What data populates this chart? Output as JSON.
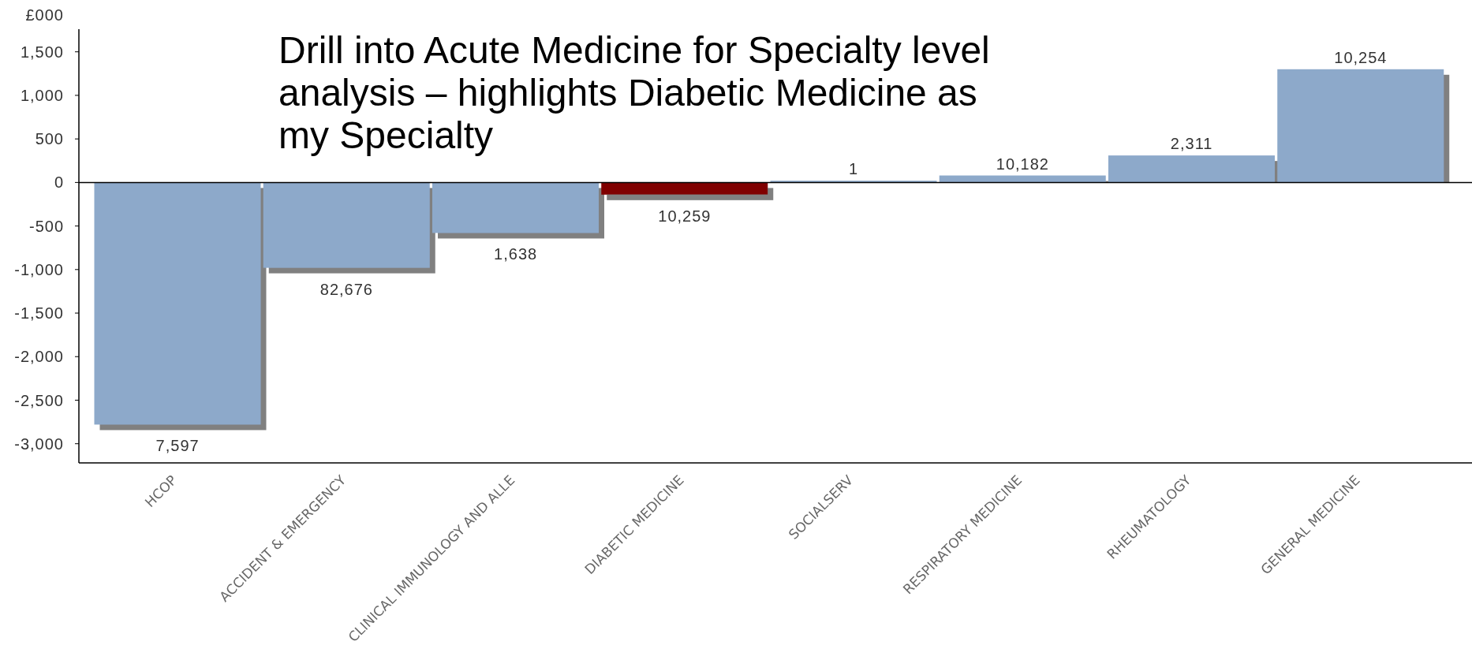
{
  "chart_data": {
    "type": "bar",
    "ylabel": "£000",
    "annotations": [
      "Drill into Acute Medicine for Specialty level analysis – highlights Diabetic Medicine as my Specialty",
      {
        "text": "7,597",
        "x": "HCOP",
        "y": -2780
      },
      {
        "text": "82,676",
        "x": "ACCIDENT & EMERGENCY",
        "y": -980
      },
      {
        "text": "1,638",
        "x": "CLINICAL IMMUNOLOGY AND ALLE",
        "y": -580
      },
      {
        "text": "10,259",
        "x": "DIABETIC MEDICINE",
        "y": -140
      },
      {
        "text": "1",
        "x": "SOCIALSERV",
        "y": 20
      },
      {
        "text": "10,182",
        "x": "RESPIRATORY MEDICINE",
        "y": 80
      },
      {
        "text": "2,311",
        "x": "RHEUMATOLOGY",
        "y": 310
      },
      {
        "text": "10,254",
        "x": "GENERAL MEDICINE",
        "y": 1300
      }
    ],
    "categories": [
      "HCOP",
      "ACCIDENT & EMERGENCY",
      "CLINICAL IMMUNOLOGY AND ALLE",
      "DIABETIC MEDICINE",
      "SOCIALSERV",
      "RESPIRATORY MEDICINE",
      "RHEUMATOLOGY",
      "GENERAL MEDICINE"
    ],
    "values": [
      -2780,
      -980,
      -580,
      -140,
      20,
      80,
      310,
      1300
    ],
    "colors": [
      "#8da9ca",
      "#8da9ca",
      "#8da9ca",
      "#800000",
      "#8da9ca",
      "#8da9ca",
      "#8da9ca",
      "#8da9ca"
    ],
    "ylim": [
      -3220,
      1760
    ],
    "yticks": [
      {
        "value": -3000,
        "label": "-3,000"
      },
      {
        "value": -2500,
        "label": "-2,500"
      },
      {
        "value": -2000,
        "label": "-2,000"
      },
      {
        "value": -1500,
        "label": "-1,500"
      },
      {
        "value": -1000,
        "label": "-1,000"
      },
      -500,
      0,
      500,
      {
        "value": 1000,
        "label": "1,000"
      },
      {
        "value": 1500,
        "label": "1,500"
      }
    ],
    "ref_lines": [
      {
        "axis": "y",
        "value": 0,
        "color": "#000000"
      }
    ]
  }
}
